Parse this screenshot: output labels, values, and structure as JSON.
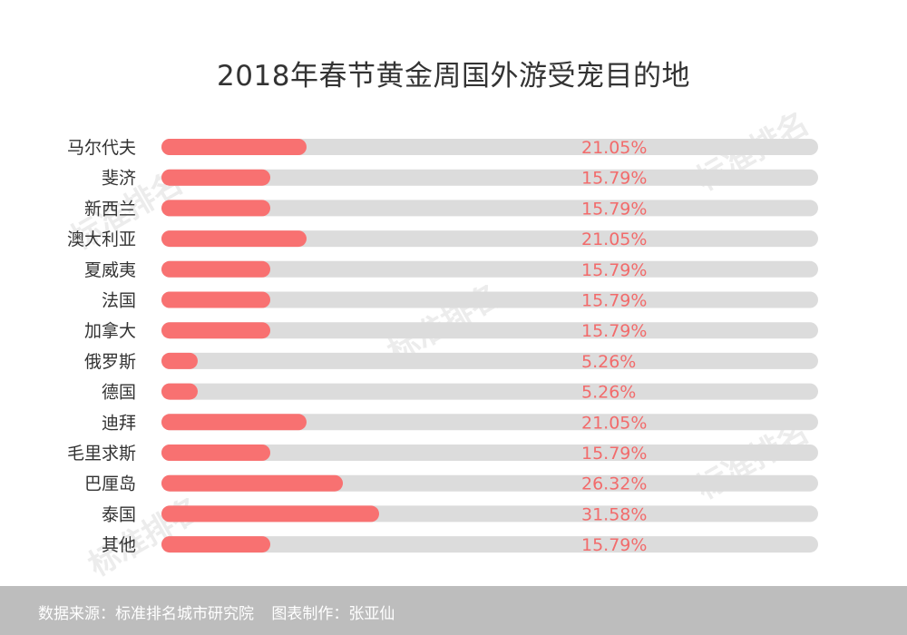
{
  "title": "2018年春节黄金周国外游受宠目的地",
  "watermark_text": "标准排名",
  "colors": {
    "bar": "#f87171",
    "track": "#dcdcdc",
    "value_label": "#f26b6b",
    "category_label": "#333333",
    "footer_bg": "#bdbdbd"
  },
  "chart_data": {
    "type": "bar",
    "orientation": "horizontal",
    "title": "2018年春节黄金周国外游受宠目的地",
    "categories": [
      "马尔代夫",
      "斐济",
      "新西兰",
      "澳大利亚",
      "夏威夷",
      "法国",
      "加拿大",
      "俄罗斯",
      "德国",
      "迪拜",
      "毛里求斯",
      "巴厘岛",
      "泰国",
      "其他"
    ],
    "values": [
      21.05,
      15.79,
      15.79,
      21.05,
      15.79,
      15.79,
      15.79,
      5.26,
      5.26,
      21.05,
      15.79,
      26.32,
      31.58,
      15.79
    ],
    "value_labels": [
      "21.05%",
      "15.79%",
      "15.79%",
      "21.05%",
      "15.79%",
      "15.79%",
      "15.79%",
      "5.26%",
      "5.26%",
      "21.05%",
      "15.79%",
      "26.32%",
      "31.58%",
      "15.79%"
    ],
    "xlim": [
      0,
      100
    ],
    "grid": false,
    "legend": "none"
  },
  "footer": {
    "source": "数据来源：标准排名城市研究院",
    "author": "图表制作：张亚仙"
  }
}
